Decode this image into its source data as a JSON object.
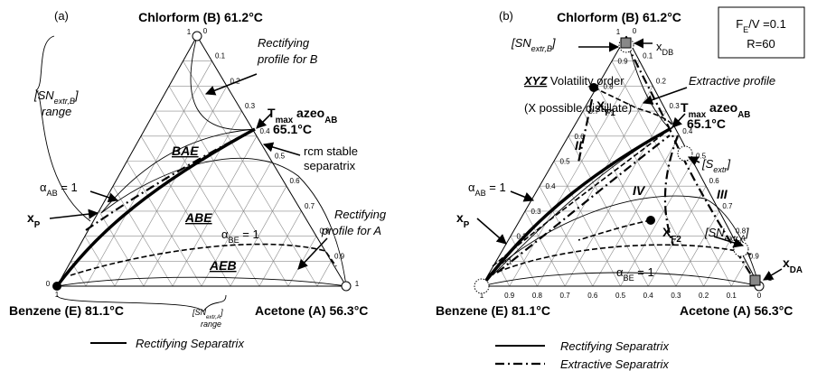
{
  "panel_a": {
    "label": "(a)",
    "top_vertex": "Chlorform (B) 61.2°C",
    "left_vertex": "Benzene (E) 81.1°C",
    "right_vertex": "Acetone (A) 56.3°C",
    "ticks": [
      "0",
      "0.1",
      "0.2",
      "0.3",
      "0.4",
      "0.5",
      "0.6",
      "0.7",
      "0.8",
      "0.9",
      "1"
    ],
    "rect_b": [
      "Rectifying",
      "profile for B"
    ],
    "sn_b": [
      {
        "t": "[SN"
      },
      {
        "sub": "extr,B"
      },
      {
        "t": "]"
      }
    ],
    "sn_b_range": "range",
    "tmax": [
      {
        "t": "T"
      },
      {
        "sub": "max"
      },
      {
        "t": " azeo"
      },
      {
        "sub": "AB"
      }
    ],
    "tmax_temp": "65.1°C",
    "bae": "BAE",
    "rcm": [
      "rcm stable",
      "separatrix"
    ],
    "alpha_ab": [
      {
        "t": "α"
      },
      {
        "sub": "AB"
      },
      {
        "t": " = 1"
      }
    ],
    "xp": [
      {
        "t": "x"
      },
      {
        "sub": "P"
      }
    ],
    "abe": "ABE",
    "rect_a": [
      "Rectifying",
      "profile for A"
    ],
    "alpha_be": [
      {
        "t": "α"
      },
      {
        "sub": "BE"
      },
      {
        "t": " = 1"
      }
    ],
    "aeb": "AEB",
    "sn_a": [
      {
        "t": "[SN"
      },
      {
        "sub": "extr,A"
      },
      {
        "t": "]"
      }
    ],
    "sn_a_range": "range",
    "legend": "Rectifying Separatrix"
  },
  "panel_b": {
    "label": "(b)",
    "top_vertex": "Chlorform (B) 61.2°C",
    "left_vertex": "Benzene (E) 81.1°C",
    "right_vertex": "Acetone (A) 56.3°C",
    "ticks": [
      "0",
      "0.1",
      "0.2",
      "0.3",
      "0.4",
      "0.5",
      "0.6",
      "0.7",
      "0.8",
      "0.9",
      "1"
    ],
    "params": [
      [
        {
          "t": "F"
        },
        {
          "sub": "E"
        },
        {
          "t": "/V =0.1"
        }
      ],
      [
        {
          "t": "R=60"
        }
      ]
    ],
    "sn_b": [
      {
        "t": "[SN"
      },
      {
        "sub": "extr,B"
      },
      {
        "t": "]"
      }
    ],
    "xdb": [
      {
        "t": "x"
      },
      {
        "sub": "DB"
      }
    ],
    "volatility": [
      {
        "t": "XYZ"
      },
      {
        "t": " Volatility order"
      }
    ],
    "possible": "(X possible distillate)",
    "extractive_profile": "Extractive profile",
    "xf1": [
      {
        "t": "X"
      },
      {
        "sub": "F1"
      }
    ],
    "tmax": [
      {
        "t": "T"
      },
      {
        "sub": "max"
      },
      {
        "t": " azeo"
      },
      {
        "sub": "AB"
      }
    ],
    "tmax_temp": "65.1°C",
    "region_2": "II",
    "sextr": [
      {
        "t": "[S"
      },
      {
        "sub": "extr"
      },
      {
        "t": "]"
      }
    ],
    "alpha_ab": [
      {
        "t": "α"
      },
      {
        "sub": "AB"
      },
      {
        "t": " = 1"
      }
    ],
    "xp": [
      {
        "t": "x"
      },
      {
        "sub": "P"
      }
    ],
    "region_4": "IV",
    "region_3": "III",
    "sn_a": [
      {
        "t": "[SN"
      },
      {
        "sub": "extr,A"
      },
      {
        "t": "]"
      }
    ],
    "xf2": [
      {
        "t": "X"
      },
      {
        "sub": "F2"
      }
    ],
    "alpha_be": [
      {
        "t": "α"
      },
      {
        "sub": "BE"
      },
      {
        "t": " = 1"
      }
    ],
    "xda": [
      {
        "t": "x"
      },
      {
        "sub": "DA"
      }
    ],
    "legend": [
      "Rectifying Separatrix",
      "Extractive Separatrix"
    ]
  }
}
